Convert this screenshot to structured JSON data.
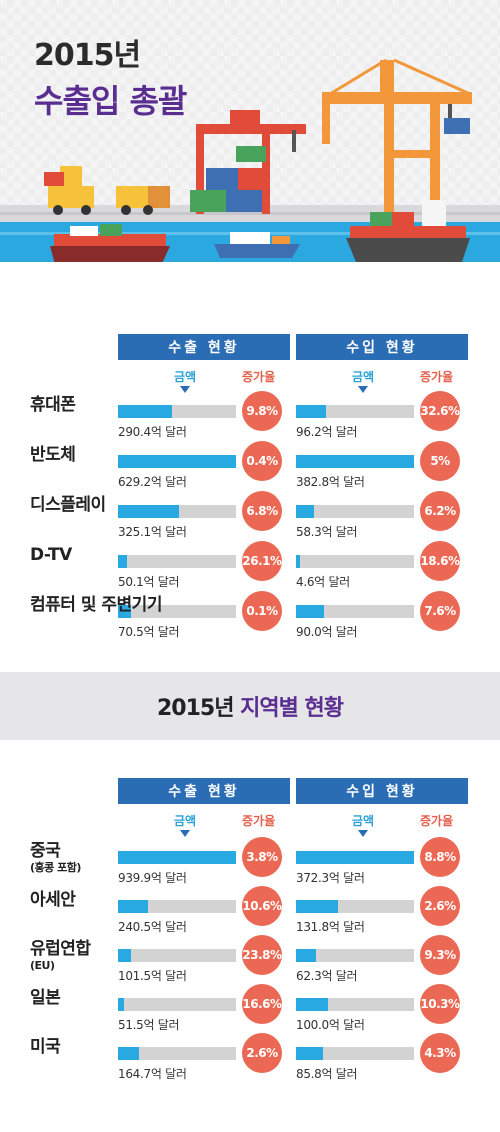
{
  "hero": {
    "year": "2015년",
    "title": "수출입 총괄"
  },
  "headers": {
    "export": "수출 현황",
    "import": "수입 현황",
    "amount": "금액",
    "rate": "증가율"
  },
  "section2_title": {
    "year": "2015년",
    "title": "지역별 현황"
  },
  "colors": {
    "bar": "#29a9e1",
    "track": "#d3d3d3",
    "circle": "#ea6854",
    "header": "#2a6db5",
    "title": "#5a2d91"
  },
  "chart_data": [
    {
      "type": "bar",
      "title": "수출입 총괄",
      "categories": [
        "휴대폰",
        "반도체",
        "디스플레이",
        "D-TV",
        "컴퓨터 및 주변기기"
      ],
      "series": [
        {
          "name": "수출 현황",
          "values": [
            290.4,
            629.2,
            325.1,
            50.1,
            70.5
          ],
          "labels": [
            "290.4억 달러",
            "629.2억 달러",
            "325.1억 달러",
            "50.1억 달러",
            "70.5억 달러"
          ],
          "growth": [
            "9.8%",
            "0.4%",
            "6.8%",
            "26.1%",
            "0.1%"
          ]
        },
        {
          "name": "수입 현황",
          "values": [
            96.2,
            382.8,
            58.3,
            4.6,
            90.0
          ],
          "labels": [
            "96.2억 달러",
            "382.8억 달러",
            "58.3억 달러",
            "4.6억 달러",
            "90.0억 달러"
          ],
          "growth": [
            "32.6%",
            "5%",
            "6.2%",
            "18.6%",
            "7.6%"
          ]
        }
      ]
    },
    {
      "type": "bar",
      "title": "지역별 현황",
      "categories": [
        "중국",
        "아세안",
        "유럽연합",
        "일본",
        "미국"
      ],
      "category_notes": [
        "(홍콩 포함)",
        "",
        "(EU)",
        "",
        ""
      ],
      "series": [
        {
          "name": "수출 현황",
          "values": [
            939.9,
            240.5,
            101.5,
            51.5,
            164.7
          ],
          "labels": [
            "939.9억 달러",
            "240.5억 달러",
            "101.5억 달러",
            "51.5억 달러",
            "164.7억 달러"
          ],
          "growth": [
            "3.8%",
            "10.6%",
            "23.8%",
            "16.6%",
            "2.6%"
          ]
        },
        {
          "name": "수입 현황",
          "values": [
            372.3,
            131.8,
            62.3,
            100.0,
            85.8
          ],
          "labels": [
            "372.3억 달러",
            "131.8억 달러",
            "62.3억 달러",
            "100.0억 달러",
            "85.8억 달러"
          ],
          "growth": [
            "8.8%",
            "2.6%",
            "9.3%",
            "10.3%",
            "4.3%"
          ]
        }
      ]
    }
  ]
}
